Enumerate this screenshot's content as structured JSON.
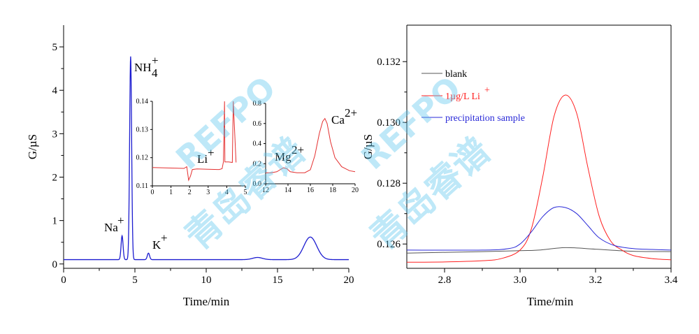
{
  "colors": {
    "blank": "#555555",
    "li_standard": "#ff2020",
    "sample": "#2a2ad8",
    "main_trace": "#1c1cd0",
    "inset_trace": "#e43030",
    "watermark": "#5fc8ef"
  },
  "watermark": {
    "latin": "REFPO",
    "chinese": "青岛睿谱"
  },
  "chart_data": [
    {
      "type": "line",
      "xlabel": "Time/min",
      "ylabel": "G/µS",
      "xlim": [
        0,
        20
      ],
      "ylim": [
        -0.1,
        5.5
      ],
      "x_ticks": [
        "0",
        "5",
        "10",
        "15",
        "20"
      ],
      "y_ticks": [
        "0",
        "1",
        "2",
        "3",
        "4",
        "5"
      ],
      "grid": false,
      "baseline": 0.1,
      "peaks": [
        {
          "label": "Na",
          "superscript": "+",
          "center": 4.1,
          "height": 0.55,
          "width": 0.07
        },
        {
          "label": "NH",
          "subscript": "4",
          "superscript": "+",
          "center": 4.7,
          "height": 4.68,
          "width": 0.07
        },
        {
          "label": "K",
          "superscript": "+",
          "center": 5.95,
          "height": 0.15,
          "width": 0.08
        },
        {
          "label": "",
          "center": 13.6,
          "height": 0.05,
          "width": 0.35
        },
        {
          "label": "",
          "center": 17.3,
          "height": 0.52,
          "width": 0.45
        }
      ],
      "insets": [
        {
          "xlim": [
            0,
            5
          ],
          "ylim": [
            0.11,
            0.14
          ],
          "x_ticks": [
            "0",
            "1",
            "2",
            "3",
            "4",
            "5"
          ],
          "y_ticks": [
            "0.11",
            "0.12",
            "0.13",
            "0.14"
          ],
          "annotation": {
            "label": "Li",
            "superscript": "+"
          },
          "series": {
            "x": [
              0.0,
              1.2,
              1.7,
              1.85,
              1.95,
              2.05,
              2.15,
              2.4,
              3.0,
              3.5,
              3.6,
              3.75,
              3.82,
              3.88,
              3.9,
              4.1,
              4.3,
              4.35,
              4.5
            ],
            "y": [
              0.1165,
              0.1163,
              0.1162,
              0.1168,
              0.112,
              0.1135,
              0.1158,
              0.116,
              0.1159,
              0.1158,
              0.1158,
              0.1161,
              0.1185,
              0.14,
              0.1185,
              0.1185,
              0.1183,
              0.14,
              0.1183
            ]
          }
        },
        {
          "xlim": [
            12,
            20
          ],
          "ylim": [
            0,
            0.8
          ],
          "x_ticks": [
            "12",
            "14",
            "16",
            "18",
            "20"
          ],
          "y_ticks": [
            "0.0",
            "0.2",
            "0.4",
            "0.6",
            "0.8"
          ],
          "annotations": [
            {
              "label": "Mg",
              "superscript": "2+"
            },
            {
              "label": "Ca",
              "superscript": "2+"
            }
          ],
          "series": {
            "x": [
              12,
              12.5,
              13.0,
              13.3,
              13.6,
              13.9,
              14.2,
              14.8,
              15.5,
              16.0,
              16.4,
              16.8,
              17.1,
              17.3,
              17.5,
              17.8,
              18.2,
              18.8,
              19.5,
              20
            ],
            "y": [
              0.11,
              0.11,
              0.12,
              0.14,
              0.16,
              0.15,
              0.12,
              0.11,
              0.11,
              0.14,
              0.28,
              0.5,
              0.62,
              0.65,
              0.6,
              0.42,
              0.26,
              0.17,
              0.13,
              0.12
            ]
          }
        }
      ]
    },
    {
      "type": "line",
      "xlabel": "Time/min",
      "ylabel": "G/µS",
      "xlim": [
        2.7,
        3.4
      ],
      "ylim": [
        0.1252,
        0.1332
      ],
      "x_ticks": [
        "2.8",
        "3.0",
        "3.2",
        "3.4"
      ],
      "y_ticks": [
        "0.126",
        "0.128",
        "0.130",
        "0.132"
      ],
      "grid": false,
      "legend": "top-left",
      "series": [
        {
          "name": "blank",
          "x": [
            2.7,
            2.9,
            3.0,
            3.05,
            3.12,
            3.2,
            3.3,
            3.4
          ],
          "y": [
            0.1257,
            0.12575,
            0.12578,
            0.1258,
            0.12588,
            0.12583,
            0.12576,
            0.12575
          ]
        },
        {
          "name": "1µg/L Li",
          "name_superscript": "+",
          "x": [
            2.7,
            2.8,
            2.9,
            2.95,
            3.0,
            3.03,
            3.06,
            3.09,
            3.12,
            3.15,
            3.18,
            3.21,
            3.24,
            3.27,
            3.3,
            3.35,
            3.4
          ],
          "y": [
            0.1254,
            0.12541,
            0.12545,
            0.12552,
            0.1258,
            0.1265,
            0.1282,
            0.1302,
            0.1309,
            0.1303,
            0.1285,
            0.1269,
            0.1261,
            0.1258,
            0.12562,
            0.12552,
            0.12548
          ]
        },
        {
          "name": "precipitation sample",
          "x": [
            2.7,
            2.9,
            2.97,
            3.0,
            3.03,
            3.06,
            3.09,
            3.12,
            3.15,
            3.18,
            3.21,
            3.25,
            3.3,
            3.35,
            3.4
          ],
          "y": [
            0.1258,
            0.1258,
            0.12585,
            0.126,
            0.1264,
            0.1269,
            0.1272,
            0.1272,
            0.127,
            0.1266,
            0.1262,
            0.12595,
            0.12585,
            0.12582,
            0.1258
          ]
        }
      ]
    }
  ]
}
